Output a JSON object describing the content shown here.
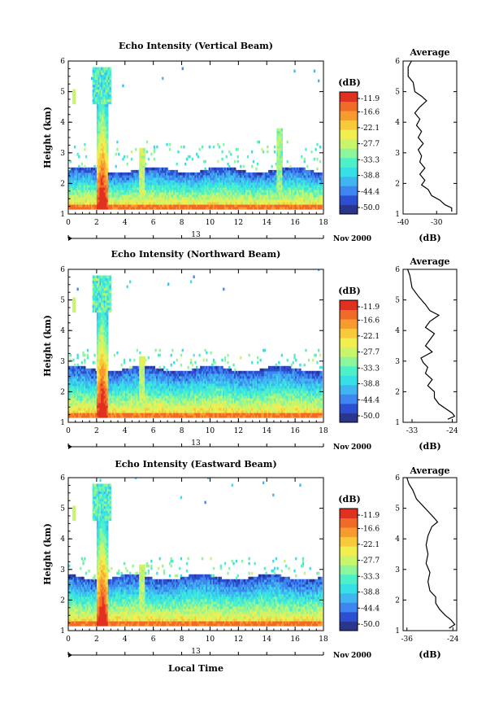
{
  "figure": {
    "xlabel": "Local Time"
  },
  "colorbar_ticks": [
    "-11.9",
    "-16.6",
    "-22.1",
    "-27.7",
    "-33.3",
    "-38.8",
    "-44.4",
    "-50.0"
  ],
  "colors": {
    "scale": [
      "#2a3590",
      "#2b4fcf",
      "#3f86f0",
      "#40b6f0",
      "#36e0e6",
      "#4ef0c8",
      "#8ef59a",
      "#c8f56a",
      "#f0ee50",
      "#f8c93a",
      "#f89a2e",
      "#f06a28",
      "#e03020"
    ],
    "line": "#000000",
    "axis": "#000000"
  },
  "chart_data": [
    {
      "type": "heatmap",
      "title": "Echo Intensity (Vertical Beam)",
      "ylabel": "Height (km)",
      "xlim": [
        0,
        18
      ],
      "ylim": [
        1,
        6
      ],
      "xticks": [
        "0",
        "2",
        "4",
        "6",
        "8",
        "10",
        "12",
        "14",
        "16",
        "18"
      ],
      "yticks": [
        "1",
        "2",
        "3",
        "4",
        "5",
        "6"
      ],
      "date": {
        "day": "13",
        "month": "Nov",
        "year": "2000"
      },
      "colorbar": {
        "label": "(dB)",
        "min": -50.0,
        "max": -11.9
      },
      "profile": {
        "title": "Average",
        "xlabel": "(dB)",
        "xlim": [
          -40,
          -24
        ],
        "xticks": [
          "-40",
          "-30"
        ],
        "points": [
          [
            -37.5,
            6.0
          ],
          [
            -38.5,
            5.8
          ],
          [
            -38.5,
            5.5
          ],
          [
            -37.0,
            5.3
          ],
          [
            -36.5,
            5.0
          ],
          [
            -34.5,
            4.85
          ],
          [
            -33.0,
            4.7
          ],
          [
            -35.0,
            4.5
          ],
          [
            -36.5,
            4.3
          ],
          [
            -35.0,
            4.1
          ],
          [
            -36.0,
            3.9
          ],
          [
            -34.5,
            3.7
          ],
          [
            -35.5,
            3.5
          ],
          [
            -34.0,
            3.3
          ],
          [
            -35.5,
            3.1
          ],
          [
            -34.5,
            2.9
          ],
          [
            -35.0,
            2.7
          ],
          [
            -33.5,
            2.5
          ],
          [
            -35.0,
            2.3
          ],
          [
            -33.5,
            2.1
          ],
          [
            -34.5,
            1.95
          ],
          [
            -32.5,
            1.8
          ],
          [
            -31.5,
            1.6
          ],
          [
            -29.0,
            1.45
          ],
          [
            -27.5,
            1.3
          ],
          [
            -25.5,
            1.2
          ],
          [
            -25.5,
            1.08
          ]
        ]
      }
    },
    {
      "type": "heatmap",
      "title": "Echo Intensity (Northward Beam)",
      "ylabel": "Height (km)",
      "xlim": [
        0,
        18
      ],
      "ylim": [
        1,
        6
      ],
      "xticks": [
        "0",
        "2",
        "4",
        "6",
        "8",
        "10",
        "12",
        "14",
        "16",
        "18"
      ],
      "yticks": [
        "1",
        "2",
        "3",
        "4",
        "5",
        "6"
      ],
      "date": {
        "day": "13",
        "month": "Nov",
        "year": "2000"
      },
      "colorbar": {
        "label": "(dB)",
        "min": -50.0,
        "max": -11.9
      },
      "profile": {
        "title": "Average",
        "xlabel": "(dB)",
        "xlim": [
          -35,
          -23
        ],
        "xticks": [
          "-33",
          "-24"
        ],
        "points": [
          [
            -34.0,
            6.0
          ],
          [
            -33.5,
            5.8
          ],
          [
            -33.0,
            5.4
          ],
          [
            -31.5,
            5.1
          ],
          [
            -30.0,
            4.85
          ],
          [
            -29.0,
            4.65
          ],
          [
            -27.0,
            4.5
          ],
          [
            -29.0,
            4.3
          ],
          [
            -30.0,
            4.1
          ],
          [
            -28.0,
            3.9
          ],
          [
            -29.0,
            3.7
          ],
          [
            -30.0,
            3.5
          ],
          [
            -28.5,
            3.3
          ],
          [
            -31.0,
            3.1
          ],
          [
            -30.5,
            2.95
          ],
          [
            -29.5,
            2.8
          ],
          [
            -30.0,
            2.6
          ],
          [
            -28.5,
            2.4
          ],
          [
            -29.5,
            2.2
          ],
          [
            -28.0,
            2.0
          ],
          [
            -28.0,
            1.8
          ],
          [
            -27.0,
            1.6
          ],
          [
            -25.5,
            1.45
          ],
          [
            -24.0,
            1.3
          ],
          [
            -23.5,
            1.2
          ],
          [
            -25.0,
            1.1
          ]
        ]
      }
    },
    {
      "type": "heatmap",
      "title": "Echo Intensity (Eastward Beam)",
      "ylabel": "Height (km)",
      "xlim": [
        0,
        18
      ],
      "ylim": [
        1,
        6
      ],
      "xticks": [
        "0",
        "2",
        "4",
        "6",
        "8",
        "10",
        "12",
        "14",
        "16",
        "18"
      ],
      "yticks": [
        "1",
        "2",
        "3",
        "4",
        "5",
        "6"
      ],
      "date": {
        "day": "13",
        "month": "Nov",
        "year": "2000"
      },
      "colorbar": {
        "label": "(dB)",
        "min": -50.0,
        "max": -11.9
      },
      "profile": {
        "title": "Average",
        "xlabel": "(dB)",
        "xlim": [
          -37,
          -23
        ],
        "xticks": [
          "-36",
          "-24"
        ],
        "points": [
          [
            -36.0,
            6.0
          ],
          [
            -35.5,
            5.8
          ],
          [
            -34.5,
            5.6
          ],
          [
            -33.5,
            5.3
          ],
          [
            -32.0,
            5.1
          ],
          [
            -30.5,
            4.9
          ],
          [
            -29.0,
            4.7
          ],
          [
            -28.0,
            4.55
          ],
          [
            -29.5,
            4.4
          ],
          [
            -30.5,
            4.1
          ],
          [
            -31.0,
            3.8
          ],
          [
            -30.5,
            3.5
          ],
          [
            -31.0,
            3.2
          ],
          [
            -30.0,
            2.9
          ],
          [
            -30.5,
            2.6
          ],
          [
            -30.0,
            2.3
          ],
          [
            -28.5,
            2.1
          ],
          [
            -28.5,
            1.9
          ],
          [
            -27.5,
            1.7
          ],
          [
            -26.0,
            1.5
          ],
          [
            -24.5,
            1.35
          ],
          [
            -23.5,
            1.2
          ],
          [
            -25.0,
            1.08
          ]
        ]
      }
    }
  ]
}
